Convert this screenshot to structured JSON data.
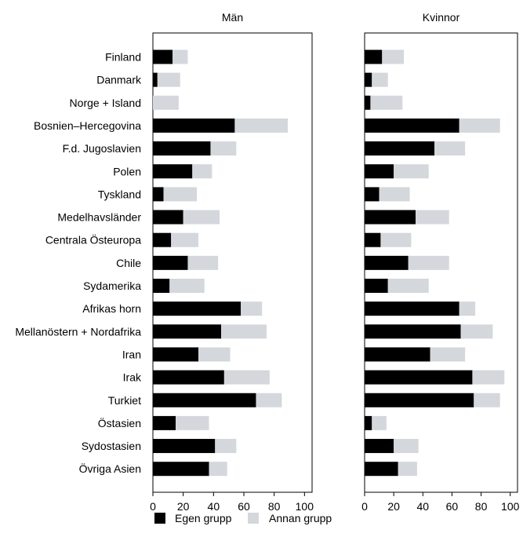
{
  "chart_data": {
    "type": "bar",
    "orientation": "horizontal",
    "stacked": true,
    "categories": [
      "Finland",
      "Danmark",
      "Norge + Island",
      "Bosnien–Hercegovina",
      "F.d. Jugoslavien",
      "Polen",
      "Tyskland",
      "Medelhavsländer",
      "Centrala Östeuropa",
      "Chile",
      "Sydamerika",
      "Afrikas horn",
      "Mellanöstern + Nordafrika",
      "Iran",
      "Irak",
      "Turkiet",
      "Östasien",
      "Sydostasien",
      "Övriga Asien"
    ],
    "legend": [
      {
        "name": "Egen grupp",
        "color": "#000000"
      },
      {
        "name": "Annan grupp",
        "color": "#d4d7dc"
      }
    ],
    "legend_position": "bottom",
    "xlim": [
      0,
      105
    ],
    "xticks": [
      "0",
      "20",
      "40",
      "60",
      "80",
      "100"
    ],
    "panels": [
      {
        "title": "Män",
        "series": [
          {
            "name": "Egen grupp",
            "values": [
              13,
              3,
              0,
              54,
              38,
              26,
              7,
              20,
              12,
              23,
              11,
              58,
              45,
              30,
              47,
              68,
              15,
              41,
              37
            ]
          },
          {
            "name": "Annan grupp",
            "values": [
              10,
              15,
              17,
              35,
              17,
              13,
              22,
              24,
              18,
              20,
              23,
              14,
              30,
              21,
              30,
              17,
              22,
              14,
              12
            ]
          }
        ]
      },
      {
        "title": "Kvinnor",
        "series": [
          {
            "name": "Egen grupp",
            "values": [
              12,
              5,
              4,
              65,
              48,
              20,
              10,
              35,
              11,
              30,
              16,
              65,
              66,
              45,
              74,
              75,
              5,
              20,
              23
            ]
          },
          {
            "name": "Annan grupp",
            "values": [
              15,
              11,
              22,
              28,
              21,
              24,
              21,
              23,
              21,
              28,
              28,
              11,
              22,
              24,
              22,
              18,
              10,
              17,
              13
            ]
          }
        ]
      }
    ]
  }
}
